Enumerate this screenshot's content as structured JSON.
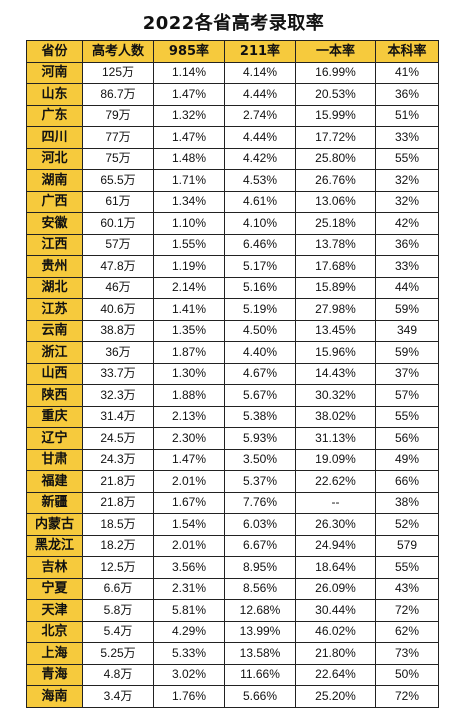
{
  "title": "2022各省高考录取率",
  "table": {
    "headers": [
      "省份",
      "高考人数",
      "985率",
      "211率",
      "一本率",
      "本科率"
    ],
    "rows": [
      [
        "河南",
        "125万",
        "1.14%",
        "4.14%",
        "16.99%",
        "41%"
      ],
      [
        "山东",
        "86.7万",
        "1.47%",
        "4.44%",
        "20.53%",
        "36%"
      ],
      [
        "广东",
        "79万",
        "1.32%",
        "2.74%",
        "15.99%",
        "51%"
      ],
      [
        "四川",
        "77万",
        "1.47%",
        "4.44%",
        "17.72%",
        "33%"
      ],
      [
        "河北",
        "75万",
        "1.48%",
        "4.42%",
        "25.80%",
        "55%"
      ],
      [
        "湖南",
        "65.5万",
        "1.71%",
        "4.53%",
        "26.76%",
        "32%"
      ],
      [
        "广西",
        "61万",
        "1.34%",
        "4.61%",
        "13.06%",
        "32%"
      ],
      [
        "安徽",
        "60.1万",
        "1.10%",
        "4.10%",
        "25.18%",
        "42%"
      ],
      [
        "江西",
        "57万",
        "1.55%",
        "6.46%",
        "13.78%",
        "36%"
      ],
      [
        "贵州",
        "47.8万",
        "1.19%",
        "5.17%",
        "17.68%",
        "33%"
      ],
      [
        "湖北",
        "46万",
        "2.14%",
        "5.16%",
        "15.89%",
        "44%"
      ],
      [
        "江苏",
        "40.6万",
        "1.41%",
        "5.19%",
        "27.98%",
        "59%"
      ],
      [
        "云南",
        "38.8万",
        "1.35%",
        "4.50%",
        "13.45%",
        "349"
      ],
      [
        "浙江",
        "36万",
        "1.87%",
        "4.40%",
        "15.96%",
        "59%"
      ],
      [
        "山西",
        "33.7万",
        "1.30%",
        "4.67%",
        "14.43%",
        "37%"
      ],
      [
        "陕西",
        "32.3万",
        "1.88%",
        "5.67%",
        "30.32%",
        "57%"
      ],
      [
        "重庆",
        "31.4万",
        "2.13%",
        "5.38%",
        "38.02%",
        "55%"
      ],
      [
        "辽宁",
        "24.5万",
        "2.30%",
        "5.93%",
        "31.13%",
        "56%"
      ],
      [
        "甘肃",
        "24.3万",
        "1.47%",
        "3.50%",
        "19.09%",
        "49%"
      ],
      [
        "福建",
        "21.8万",
        "2.01%",
        "5.37%",
        "22.62%",
        "66%"
      ],
      [
        "新疆",
        "21.8万",
        "1.67%",
        "7.76%",
        "--",
        "38%"
      ],
      [
        "内蒙古",
        "18.5万",
        "1.54%",
        "6.03%",
        "26.30%",
        "52%"
      ],
      [
        "黑龙江",
        "18.2万",
        "2.01%",
        "6.67%",
        "24.94%",
        "579"
      ],
      [
        "吉林",
        "12.5万",
        "3.56%",
        "8.95%",
        "18.64%",
        "55%"
      ],
      [
        "宁夏",
        "6.6万",
        "2.31%",
        "8.56%",
        "26.09%",
        "43%"
      ],
      [
        "天津",
        "5.8万",
        "5.81%",
        "12.68%",
        "30.44%",
        "72%"
      ],
      [
        "北京",
        "5.4万",
        "4.29%",
        "13.99%",
        "46.02%",
        "62%"
      ],
      [
        "上海",
        "5.25万",
        "5.33%",
        "13.58%",
        "21.80%",
        "73%"
      ],
      [
        "青海",
        "4.8万",
        "3.02%",
        "11.66%",
        "22.64%",
        "50%"
      ],
      [
        "海南",
        "3.4万",
        "1.76%",
        "5.66%",
        "25.20%",
        "72%"
      ]
    ]
  },
  "colors": {
    "header_bg": "#f6ca3d",
    "border": "#222222"
  }
}
